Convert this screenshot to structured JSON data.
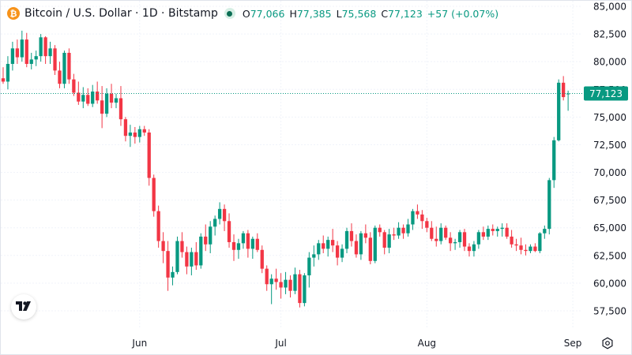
{
  "legend": {
    "coin_glyph": "₿",
    "title": "Bitcoin / U.S. Dollar · 1D · Bitstamp",
    "open_label": "O",
    "open": "77,066",
    "high_label": "H",
    "high": "77,385",
    "low_label": "L",
    "low": "75,568",
    "close_label": "C",
    "close": "77,123",
    "change": "+57 (+0.07%)"
  },
  "colors": {
    "up": "#089981",
    "down": "#f23645",
    "grid": "#f0f3fa",
    "axis_text": "#131722",
    "price_line": "#089981",
    "brand_orange": "#f7931a"
  },
  "icons": {
    "logo": "tradingview-logo-icon",
    "settings": "settings-gear-icon"
  },
  "chart_data": {
    "type": "candlestick",
    "title": "Bitcoin / U.S. Dollar · 1D · Bitstamp",
    "y_axis": {
      "position": "right",
      "range": [
        56000,
        85500
      ],
      "ticks": [
        {
          "value": 57500,
          "label": "57,500"
        },
        {
          "value": 60000,
          "label": "60,000"
        },
        {
          "value": 62500,
          "label": "62,500"
        },
        {
          "value": 65000,
          "label": "65,000"
        },
        {
          "value": 67500,
          "label": "67,500"
        },
        {
          "value": 70000,
          "label": "70,000"
        },
        {
          "value": 72500,
          "label": "72,500"
        },
        {
          "value": 75000,
          "label": "75,000"
        },
        {
          "value": 77500,
          "label": "77,500"
        },
        {
          "value": 80000,
          "label": "80,000"
        },
        {
          "value": 82500,
          "label": "82,500"
        },
        {
          "value": 85000,
          "label": "85,000"
        }
      ]
    },
    "x_axis": {
      "index_range": [
        -0.5,
        123
      ],
      "ticks": [
        {
          "index": 29,
          "label": "Jun"
        },
        {
          "index": 59,
          "label": "Jul"
        },
        {
          "index": 90,
          "label": "Aug"
        },
        {
          "index": 121,
          "label": "Sep"
        }
      ]
    },
    "last_price": {
      "value": 77123,
      "label": "77,123"
    },
    "grid": true,
    "candles": [
      [
        78500,
        79500,
        78000,
        78200
      ],
      [
        78200,
        80500,
        77500,
        79800
      ],
      [
        79800,
        81800,
        79200,
        81200
      ],
      [
        81200,
        82000,
        79800,
        80400
      ],
      [
        80400,
        82800,
        80000,
        82000
      ],
      [
        82000,
        82600,
        79500,
        79800
      ],
      [
        79800,
        80800,
        79300,
        80200
      ],
      [
        80200,
        81000,
        79600,
        80500
      ],
      [
        80500,
        82500,
        80000,
        82200
      ],
      [
        82200,
        82300,
        79800,
        80500
      ],
      [
        80500,
        81800,
        79800,
        81200
      ],
      [
        81200,
        81500,
        78800,
        79200
      ],
      [
        79200,
        80000,
        77600,
        78000
      ],
      [
        78000,
        81000,
        77600,
        80800
      ],
      [
        80800,
        81200,
        78000,
        78400
      ],
      [
        78400,
        78900,
        76900,
        77200
      ],
      [
        77200,
        78200,
        76100,
        76400
      ],
      [
        76400,
        77700,
        75800,
        77000
      ],
      [
        77000,
        77600,
        76000,
        76200
      ],
      [
        76200,
        77900,
        75900,
        77300
      ],
      [
        77300,
        78200,
        76200,
        76500
      ],
      [
        76500,
        77800,
        74000,
        75300
      ],
      [
        75300,
        77600,
        75000,
        77100
      ],
      [
        77100,
        78000,
        75800,
        76300
      ],
      [
        76300,
        77100,
        75800,
        76700
      ],
      [
        76700,
        77800,
        74200,
        74800
      ],
      [
        74800,
        75000,
        72800,
        73300
      ],
      [
        73300,
        74300,
        72300,
        73600
      ],
      [
        73600,
        74100,
        72600,
        73200
      ],
      [
        73200,
        74200,
        72700,
        73900
      ],
      [
        73900,
        74200,
        73300,
        73600
      ],
      [
        73600,
        73900,
        68800,
        69500
      ],
      [
        69500,
        69800,
        66000,
        66500
      ],
      [
        66500,
        67000,
        63200,
        63800
      ],
      [
        63800,
        64600,
        61800,
        62900
      ],
      [
        62900,
        63800,
        59300,
        60500
      ],
      [
        60500,
        61500,
        59800,
        61000
      ],
      [
        61000,
        64200,
        60800,
        63800
      ],
      [
        63800,
        64600,
        62300,
        62800
      ],
      [
        62800,
        63300,
        60800,
        61500
      ],
      [
        61500,
        63200,
        60700,
        62800
      ],
      [
        62800,
        63700,
        61200,
        61600
      ],
      [
        61600,
        64500,
        61300,
        64200
      ],
      [
        64200,
        65300,
        62900,
        63500
      ],
      [
        63500,
        65600,
        62700,
        65100
      ],
      [
        65100,
        66100,
        64300,
        65800
      ],
      [
        65800,
        67300,
        65300,
        66700
      ],
      [
        66700,
        67100,
        64700,
        65600
      ],
      [
        65600,
        66300,
        63200,
        63700
      ],
      [
        63700,
        64400,
        62000,
        63000
      ],
      [
        63000,
        64000,
        62200,
        63600
      ],
      [
        63600,
        64700,
        63100,
        64500
      ],
      [
        64500,
        64800,
        62300,
        63100
      ],
      [
        63100,
        64200,
        62200,
        64000
      ],
      [
        64000,
        64500,
        62800,
        63000
      ],
      [
        63000,
        63400,
        60900,
        61300
      ],
      [
        61300,
        61600,
        59300,
        59900
      ],
      [
        59900,
        60800,
        58100,
        60400
      ],
      [
        60400,
        61300,
        59400,
        60100
      ],
      [
        60100,
        60900,
        58600,
        59600
      ],
      [
        59600,
        61000,
        59000,
        60300
      ],
      [
        60300,
        60700,
        58700,
        59300
      ],
      [
        59300,
        61400,
        59000,
        60800
      ],
      [
        60800,
        61200,
        57800,
        58200
      ],
      [
        58200,
        60900,
        57900,
        60700
      ],
      [
        60700,
        62800,
        59600,
        62300
      ],
      [
        62300,
        63400,
        61500,
        62600
      ],
      [
        62600,
        63900,
        62100,
        63600
      ],
      [
        63600,
        64300,
        62700,
        63100
      ],
      [
        63100,
        64200,
        62400,
        63900
      ],
      [
        63900,
        64900,
        62800,
        63400
      ],
      [
        63400,
        63800,
        61600,
        62300
      ],
      [
        62300,
        63500,
        61900,
        63100
      ],
      [
        63100,
        65000,
        62700,
        64700
      ],
      [
        64700,
        65400,
        63300,
        63800
      ],
      [
        63800,
        64400,
        62300,
        62600
      ],
      [
        62600,
        64700,
        62100,
        64500
      ],
      [
        64500,
        65300,
        63600,
        64100
      ],
      [
        64100,
        64600,
        61700,
        62000
      ],
      [
        62000,
        65200,
        61800,
        65000
      ],
      [
        65000,
        65300,
        64200,
        64600
      ],
      [
        64600,
        64800,
        62600,
        63200
      ],
      [
        63200,
        64900,
        62700,
        64400
      ],
      [
        64400,
        65000,
        63900,
        64300
      ],
      [
        64300,
        65500,
        64000,
        65000
      ],
      [
        65000,
        65300,
        64000,
        64500
      ],
      [
        64500,
        65800,
        64200,
        65300
      ],
      [
        65300,
        66700,
        64800,
        66500
      ],
      [
        66500,
        67100,
        65800,
        66200
      ],
      [
        66200,
        66600,
        64900,
        65600
      ],
      [
        65600,
        65900,
        64600,
        65000
      ],
      [
        65000,
        65600,
        63800,
        64000
      ],
      [
        64000,
        65100,
        63300,
        63800
      ],
      [
        63800,
        65400,
        63500,
        65000
      ],
      [
        65000,
        65200,
        63900,
        64100
      ],
      [
        64100,
        64600,
        62900,
        63600
      ],
      [
        63600,
        64000,
        63000,
        63700
      ],
      [
        63700,
        64800,
        63200,
        64600
      ],
      [
        64600,
        64900,
        62900,
        63300
      ],
      [
        63300,
        63600,
        62400,
        62900
      ],
      [
        62900,
        63800,
        62400,
        63500
      ],
      [
        63500,
        64800,
        63100,
        64600
      ],
      [
        64600,
        65100,
        63900,
        64200
      ],
      [
        64200,
        65200,
        63900,
        64900
      ],
      [
        64900,
        65300,
        64300,
        64700
      ],
      [
        64700,
        65100,
        64200,
        64900
      ],
      [
        64900,
        65400,
        64200,
        65000
      ],
      [
        65000,
        65400,
        64000,
        64200
      ],
      [
        64200,
        64800,
        63200,
        63500
      ],
      [
        63500,
        64000,
        62900,
        63400
      ],
      [
        63400,
        64100,
        62600,
        63000
      ],
      [
        63000,
        63500,
        62500,
        62900
      ],
      [
        62900,
        63500,
        62700,
        63300
      ],
      [
        63300,
        63600,
        62800,
        62900
      ],
      [
        62900,
        64600,
        62700,
        64500
      ],
      [
        64500,
        65200,
        64000,
        64900
      ],
      [
        64900,
        69500,
        64400,
        69300
      ],
      [
        69300,
        73200,
        68600,
        72900
      ],
      [
        72900,
        78400,
        72800,
        78100
      ],
      [
        78100,
        78700,
        76500,
        76800
      ],
      [
        77066,
        77385,
        75568,
        77123
      ]
    ]
  }
}
